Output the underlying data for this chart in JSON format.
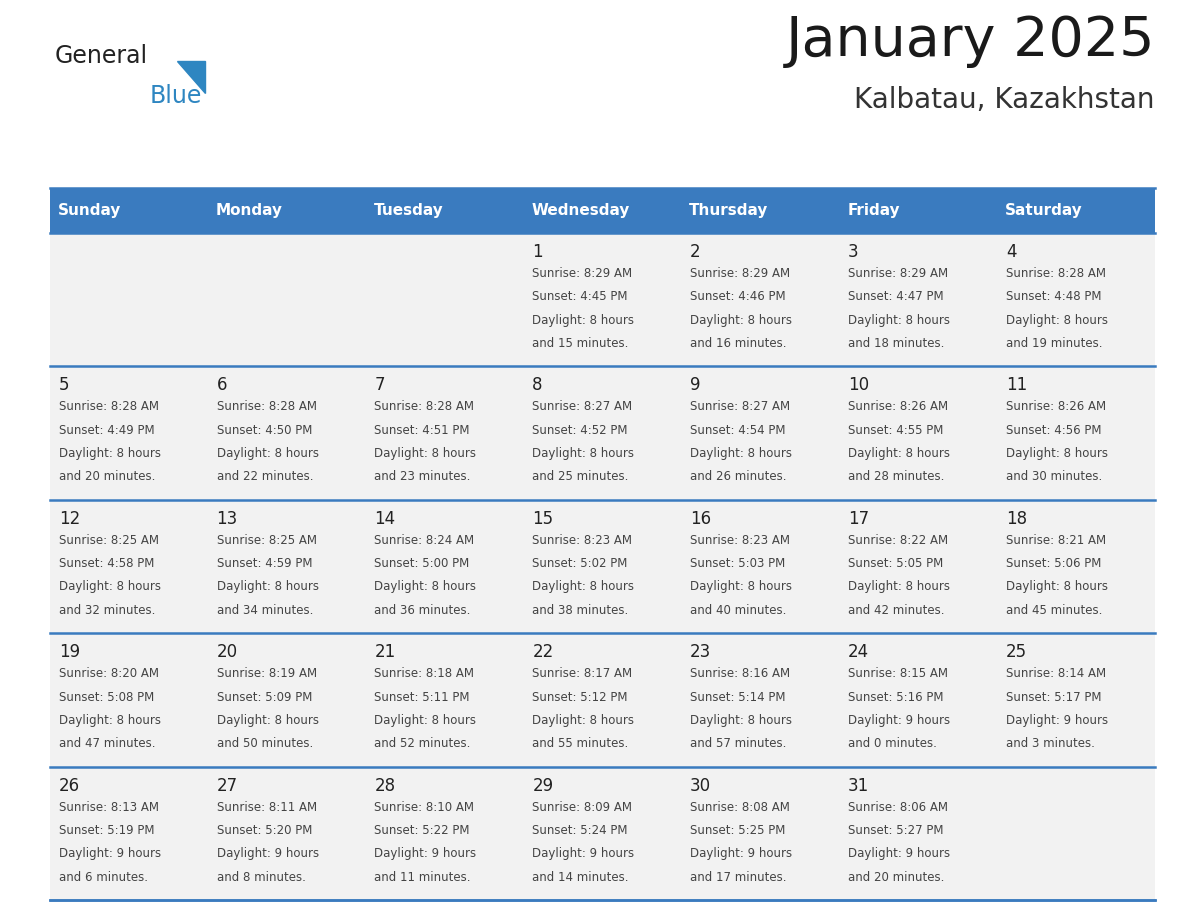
{
  "title": "January 2025",
  "subtitle": "Kalbatau, Kazakhstan",
  "days_of_week": [
    "Sunday",
    "Monday",
    "Tuesday",
    "Wednesday",
    "Thursday",
    "Friday",
    "Saturday"
  ],
  "header_bg": "#3a7bbf",
  "header_text_color": "#ffffff",
  "cell_bg": "#f2f2f2",
  "row_line_color": "#3a7bbf",
  "text_color": "#444444",
  "day_num_color": "#222222",
  "calendar_data": [
    [
      null,
      null,
      null,
      {
        "day": 1,
        "sunrise": "8:29 AM",
        "sunset": "4:45 PM",
        "daylight": "8 hours and 15 minutes."
      },
      {
        "day": 2,
        "sunrise": "8:29 AM",
        "sunset": "4:46 PM",
        "daylight": "8 hours and 16 minutes."
      },
      {
        "day": 3,
        "sunrise": "8:29 AM",
        "sunset": "4:47 PM",
        "daylight": "8 hours and 18 minutes."
      },
      {
        "day": 4,
        "sunrise": "8:28 AM",
        "sunset": "4:48 PM",
        "daylight": "8 hours and 19 minutes."
      }
    ],
    [
      {
        "day": 5,
        "sunrise": "8:28 AM",
        "sunset": "4:49 PM",
        "daylight": "8 hours and 20 minutes."
      },
      {
        "day": 6,
        "sunrise": "8:28 AM",
        "sunset": "4:50 PM",
        "daylight": "8 hours and 22 minutes."
      },
      {
        "day": 7,
        "sunrise": "8:28 AM",
        "sunset": "4:51 PM",
        "daylight": "8 hours and 23 minutes."
      },
      {
        "day": 8,
        "sunrise": "8:27 AM",
        "sunset": "4:52 PM",
        "daylight": "8 hours and 25 minutes."
      },
      {
        "day": 9,
        "sunrise": "8:27 AM",
        "sunset": "4:54 PM",
        "daylight": "8 hours and 26 minutes."
      },
      {
        "day": 10,
        "sunrise": "8:26 AM",
        "sunset": "4:55 PM",
        "daylight": "8 hours and 28 minutes."
      },
      {
        "day": 11,
        "sunrise": "8:26 AM",
        "sunset": "4:56 PM",
        "daylight": "8 hours and 30 minutes."
      }
    ],
    [
      {
        "day": 12,
        "sunrise": "8:25 AM",
        "sunset": "4:58 PM",
        "daylight": "8 hours and 32 minutes."
      },
      {
        "day": 13,
        "sunrise": "8:25 AM",
        "sunset": "4:59 PM",
        "daylight": "8 hours and 34 minutes."
      },
      {
        "day": 14,
        "sunrise": "8:24 AM",
        "sunset": "5:00 PM",
        "daylight": "8 hours and 36 minutes."
      },
      {
        "day": 15,
        "sunrise": "8:23 AM",
        "sunset": "5:02 PM",
        "daylight": "8 hours and 38 minutes."
      },
      {
        "day": 16,
        "sunrise": "8:23 AM",
        "sunset": "5:03 PM",
        "daylight": "8 hours and 40 minutes."
      },
      {
        "day": 17,
        "sunrise": "8:22 AM",
        "sunset": "5:05 PM",
        "daylight": "8 hours and 42 minutes."
      },
      {
        "day": 18,
        "sunrise": "8:21 AM",
        "sunset": "5:06 PM",
        "daylight": "8 hours and 45 minutes."
      }
    ],
    [
      {
        "day": 19,
        "sunrise": "8:20 AM",
        "sunset": "5:08 PM",
        "daylight": "8 hours and 47 minutes."
      },
      {
        "day": 20,
        "sunrise": "8:19 AM",
        "sunset": "5:09 PM",
        "daylight": "8 hours and 50 minutes."
      },
      {
        "day": 21,
        "sunrise": "8:18 AM",
        "sunset": "5:11 PM",
        "daylight": "8 hours and 52 minutes."
      },
      {
        "day": 22,
        "sunrise": "8:17 AM",
        "sunset": "5:12 PM",
        "daylight": "8 hours and 55 minutes."
      },
      {
        "day": 23,
        "sunrise": "8:16 AM",
        "sunset": "5:14 PM",
        "daylight": "8 hours and 57 minutes."
      },
      {
        "day": 24,
        "sunrise": "8:15 AM",
        "sunset": "5:16 PM",
        "daylight": "9 hours and 0 minutes."
      },
      {
        "day": 25,
        "sunrise": "8:14 AM",
        "sunset": "5:17 PM",
        "daylight": "9 hours and 3 minutes."
      }
    ],
    [
      {
        "day": 26,
        "sunrise": "8:13 AM",
        "sunset": "5:19 PM",
        "daylight": "9 hours and 6 minutes."
      },
      {
        "day": 27,
        "sunrise": "8:11 AM",
        "sunset": "5:20 PM",
        "daylight": "9 hours and 8 minutes."
      },
      {
        "day": 28,
        "sunrise": "8:10 AM",
        "sunset": "5:22 PM",
        "daylight": "9 hours and 11 minutes."
      },
      {
        "day": 29,
        "sunrise": "8:09 AM",
        "sunset": "5:24 PM",
        "daylight": "9 hours and 14 minutes."
      },
      {
        "day": 30,
        "sunrise": "8:08 AM",
        "sunset": "5:25 PM",
        "daylight": "9 hours and 17 minutes."
      },
      {
        "day": 31,
        "sunrise": "8:06 AM",
        "sunset": "5:27 PM",
        "daylight": "9 hours and 20 minutes."
      },
      null
    ]
  ],
  "logo_text1": "General",
  "logo_text2": "Blue",
  "logo_color1": "#222222",
  "logo_color2": "#2e86c1",
  "logo_triangle_color": "#2e86c1",
  "title_fontsize": 40,
  "subtitle_fontsize": 20,
  "header_fontsize": 11,
  "day_num_fontsize": 12,
  "cell_text_fontsize": 8.5
}
